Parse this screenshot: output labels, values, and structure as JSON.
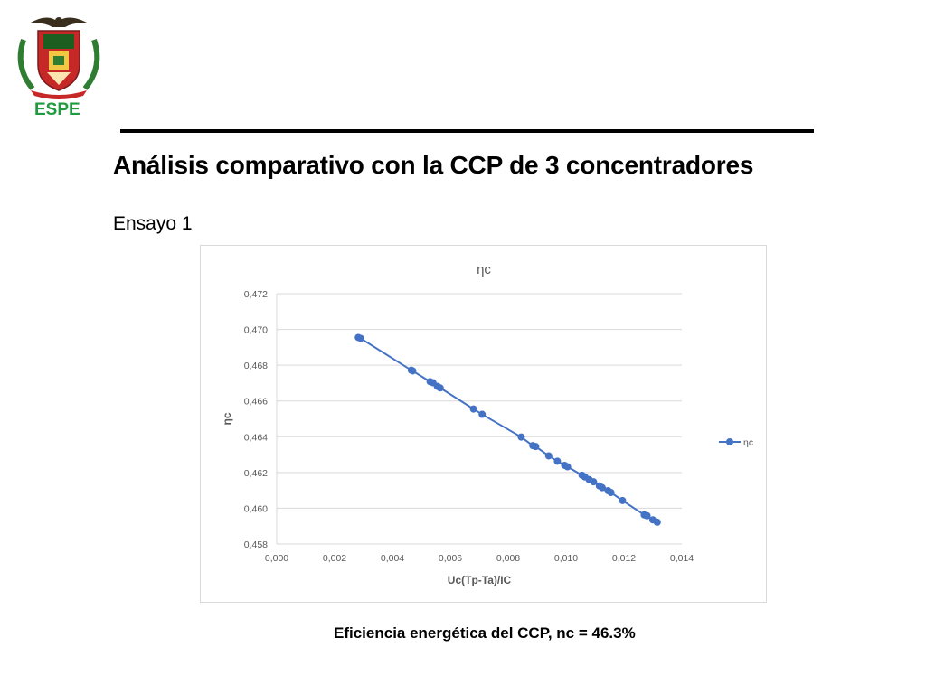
{
  "header": {
    "logo_text": "ESPE",
    "title": "Análisis comparativo con la CCP de 3 concentradores",
    "subtitle": "Ensayo 1"
  },
  "caption": "Eficiencia energética del CCP, nc = 46.3%",
  "colors": {
    "series": "#4472c4",
    "logo_green": "#1f9a3e"
  },
  "chart_data": {
    "type": "scatter",
    "title": "ηc",
    "xlabel": "Uc(Tp-Ta)/IC",
    "ylabel": "ηc",
    "xlim": [
      0.0,
      0.014
    ],
    "ylim": [
      0.458,
      0.472
    ],
    "xticks": [
      "0,000",
      "0,002",
      "0,004",
      "0,006",
      "0,008",
      "0,010",
      "0,012",
      "0,014"
    ],
    "yticks": [
      "0,458",
      "0,460",
      "0,462",
      "0,464",
      "0,466",
      "0,468",
      "0,470",
      "0,472"
    ],
    "grid": true,
    "legend": "right",
    "series": [
      {
        "name": "ηc",
        "x": [
          0.00282,
          0.0029,
          0.00465,
          0.0047,
          0.0053,
          0.0054,
          0.00555,
          0.00565,
          0.0068,
          0.0071,
          0.00845,
          0.00885,
          0.00895,
          0.0094,
          0.0097,
          0.00995,
          0.01005,
          0.01055,
          0.01065,
          0.0108,
          0.01095,
          0.01115,
          0.01125,
          0.01145,
          0.01155,
          0.01195,
          0.0127,
          0.0128,
          0.013,
          0.01315
        ],
        "y": [
          0.46955,
          0.4695,
          0.46772,
          0.46768,
          0.46708,
          0.46702,
          0.46682,
          0.46673,
          0.46555,
          0.46525,
          0.46398,
          0.4635,
          0.46345,
          0.46293,
          0.46263,
          0.4624,
          0.46232,
          0.46185,
          0.46175,
          0.4616,
          0.46148,
          0.46125,
          0.46115,
          0.46098,
          0.46088,
          0.46043,
          0.45963,
          0.45958,
          0.45935,
          0.45922
        ]
      }
    ]
  }
}
